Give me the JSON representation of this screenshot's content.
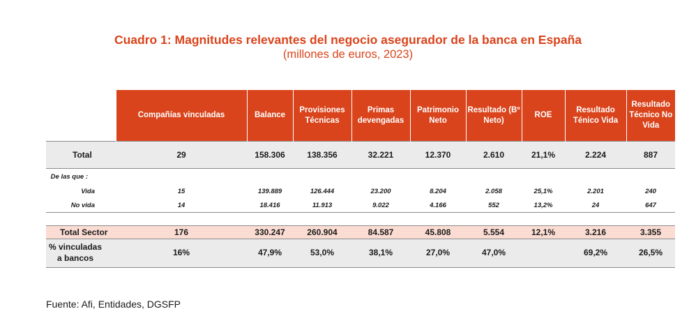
{
  "title": "Cuadro 1: Magnitudes relevantes del negocio asegurador de la banca en España",
  "subtitle": "(millones de euros, 2023)",
  "colors": {
    "accent": "#d9441c",
    "sector_row": "#fbdcd3",
    "total_row": "#ebebeb"
  },
  "headers": [
    "Compañías vinculadas",
    "Balance",
    "Provisiones Técnicas",
    "Primas devengadas",
    "Patrimonio Neto",
    "Resultado (Bº Neto)",
    "ROE",
    "Resultado Ténico Vida",
    "Resultado Técnico No Vida"
  ],
  "rows": {
    "total": {
      "label": "Total",
      "values": [
        "29",
        "158.306",
        "138.356",
        "32.221",
        "12.370",
        "2.610",
        "21,1%",
        "2.224",
        "887"
      ]
    },
    "delas_label": "De las que :",
    "vida": {
      "label": "Vida",
      "values": [
        "15",
        "139.889",
        "126.444",
        "23.200",
        "8.204",
        "2.058",
        "25,1%",
        "2.201",
        "240"
      ]
    },
    "novida": {
      "label": "No vida",
      "values": [
        "14",
        "18.416",
        "11.913",
        "9.022",
        "4.166",
        "552",
        "13,2%",
        "24",
        "647"
      ]
    },
    "sector": {
      "label": "Total Sector",
      "values": [
        "176",
        "330.247",
        "260.904",
        "84.587",
        "45.808",
        "5.554",
        "12,1%",
        "3.216",
        "3.355"
      ]
    },
    "pct": {
      "label": "% vinculadas a bancos",
      "values": [
        "16%",
        "47,9%",
        "53,0%",
        "38,1%",
        "27,0%",
        "47,0%",
        "",
        "69,2%",
        "26,5%"
      ]
    }
  },
  "source": "Fuente: Afi, Entidades, DGSFP"
}
